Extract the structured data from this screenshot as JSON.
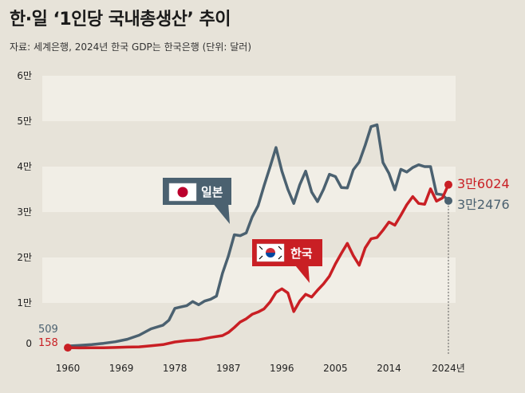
{
  "header": {
    "title": "한·일 ‘1인당 국내총생산’ 추이",
    "source": "자료: 세계은행, 2024년 한국 GDP는 한국은행 (단위: 달러)"
  },
  "colors": {
    "japan": "#4b6170",
    "korea": "#c91f24",
    "background": "#e7e3d9",
    "band": "#f1eee6"
  },
  "legend": {
    "japan_label": "일본",
    "korea_label": "한국",
    "japan_icon": "japan-flag-icon",
    "korea_icon": "korea-flag-icon"
  },
  "annotations": {
    "japan_start": "509",
    "korea_start": "158",
    "korea_end": "3만6024",
    "japan_end": "3만2476"
  },
  "chart_data": {
    "type": "line",
    "title": "한·일 ‘1인당 국내총생산’ 추이",
    "ylabel": "",
    "xlabel": "",
    "ylim": [
      0,
      60000
    ],
    "xlim": [
      1960,
      2024
    ],
    "yticks": [
      0,
      10000,
      20000,
      30000,
      40000,
      50000,
      60000
    ],
    "ytick_labels": [
      "0",
      "1만",
      "2만",
      "3만",
      "4만",
      "5만",
      "6만"
    ],
    "xticks": [
      1960,
      1969,
      1978,
      1987,
      1996,
      2005,
      2014,
      2024
    ],
    "xtick_labels": [
      "1960",
      "1969",
      "1978",
      "1987",
      "1996",
      "2005",
      "2014",
      "2024년"
    ],
    "grid": "horizontal bands",
    "series": [
      {
        "name": "일본",
        "color": "#4b6170",
        "points": [
          [
            1960,
            509
          ],
          [
            1962,
            650
          ],
          [
            1964,
            850
          ],
          [
            1966,
            1100
          ],
          [
            1968,
            1450
          ],
          [
            1970,
            2000
          ],
          [
            1972,
            2900
          ],
          [
            1974,
            4300
          ],
          [
            1976,
            5100
          ],
          [
            1977,
            6200
          ],
          [
            1978,
            8800
          ],
          [
            1979,
            9100
          ],
          [
            1980,
            9400
          ],
          [
            1981,
            10300
          ],
          [
            1982,
            9600
          ],
          [
            1983,
            10400
          ],
          [
            1984,
            10800
          ],
          [
            1985,
            11500
          ],
          [
            1986,
            16500
          ],
          [
            1987,
            20300
          ],
          [
            1988,
            25000
          ],
          [
            1989,
            24800
          ],
          [
            1990,
            25400
          ],
          [
            1991,
            28900
          ],
          [
            1992,
            31400
          ],
          [
            1993,
            35800
          ],
          [
            1994,
            39900
          ],
          [
            1995,
            44200
          ],
          [
            1996,
            39000
          ],
          [
            1997,
            35000
          ],
          [
            1998,
            31900
          ],
          [
            1999,
            36000
          ],
          [
            2000,
            39000
          ],
          [
            2001,
            34400
          ],
          [
            2002,
            32300
          ],
          [
            2003,
            35000
          ],
          [
            2004,
            38300
          ],
          [
            2005,
            37800
          ],
          [
            2006,
            35400
          ],
          [
            2007,
            35300
          ],
          [
            2008,
            39300
          ],
          [
            2009,
            41000
          ],
          [
            2010,
            44700
          ],
          [
            2011,
            48800
          ],
          [
            2012,
            49200
          ],
          [
            2013,
            40900
          ],
          [
            2014,
            38500
          ],
          [
            2015,
            34900
          ],
          [
            2016,
            39400
          ],
          [
            2017,
            38800
          ],
          [
            2018,
            39800
          ],
          [
            2019,
            40400
          ],
          [
            2020,
            40000
          ],
          [
            2021,
            40000
          ],
          [
            2022,
            34000
          ],
          [
            2023,
            33800
          ],
          [
            2024,
            32476
          ]
        ]
      },
      {
        "name": "한국",
        "color": "#c91f24",
        "points": [
          [
            1960,
            158
          ],
          [
            1962,
            106
          ],
          [
            1964,
            130
          ],
          [
            1966,
            130
          ],
          [
            1968,
            200
          ],
          [
            1970,
            280
          ],
          [
            1972,
            330
          ],
          [
            1974,
            560
          ],
          [
            1976,
            830
          ],
          [
            1978,
            1400
          ],
          [
            1980,
            1700
          ],
          [
            1982,
            1900
          ],
          [
            1984,
            2400
          ],
          [
            1986,
            2800
          ],
          [
            1987,
            3500
          ],
          [
            1988,
            4600
          ],
          [
            1989,
            5800
          ],
          [
            1990,
            6500
          ],
          [
            1991,
            7500
          ],
          [
            1992,
            8000
          ],
          [
            1993,
            8700
          ],
          [
            1994,
            10200
          ],
          [
            1995,
            12300
          ],
          [
            1996,
            13100
          ],
          [
            1997,
            12200
          ],
          [
            1998,
            8100
          ],
          [
            1999,
            10400
          ],
          [
            2000,
            11900
          ],
          [
            2001,
            11300
          ],
          [
            2002,
            12800
          ],
          [
            2003,
            14200
          ],
          [
            2004,
            15900
          ],
          [
            2005,
            18600
          ],
          [
            2006,
            20900
          ],
          [
            2007,
            23100
          ],
          [
            2008,
            20400
          ],
          [
            2009,
            18300
          ],
          [
            2010,
            22100
          ],
          [
            2011,
            24100
          ],
          [
            2012,
            24400
          ],
          [
            2013,
            26000
          ],
          [
            2014,
            27800
          ],
          [
            2015,
            27100
          ],
          [
            2016,
            29300
          ],
          [
            2017,
            31600
          ],
          [
            2018,
            33400
          ],
          [
            2019,
            31900
          ],
          [
            2020,
            31700
          ],
          [
            2021,
            35100
          ],
          [
            2022,
            32400
          ],
          [
            2023,
            33100
          ],
          [
            2024,
            36024
          ]
        ]
      }
    ]
  }
}
